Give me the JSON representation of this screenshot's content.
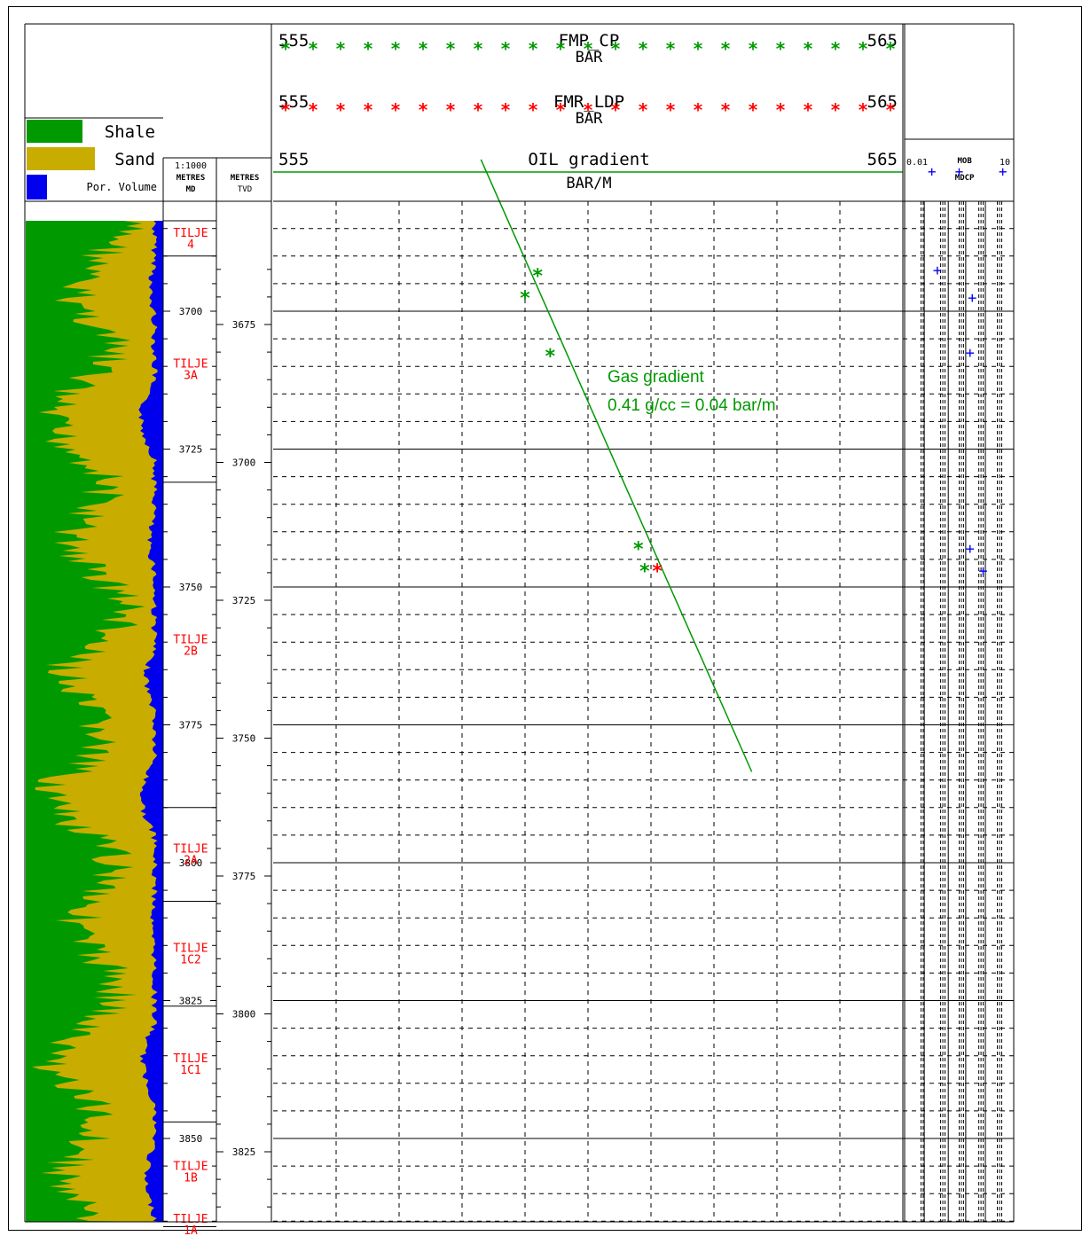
{
  "lithology_legend": {
    "shale": {
      "label": "Shale",
      "color": "#009900"
    },
    "sand": {
      "label": "Sand",
      "color": "#c8ad00"
    },
    "porosity": {
      "label": "Por. Volume",
      "color": "#0000ee"
    }
  },
  "depth_tracks": {
    "scale": "1:1000",
    "md_unit": "METRES",
    "md_label": "MD",
    "tvd_unit": "METRES",
    "tvd_label": "TVD"
  },
  "zones": [
    {
      "name": "TILJE",
      "code": "4",
      "top_md": 3672,
      "base_md": 3690
    },
    {
      "name": "TILJE",
      "code": "3A",
      "top_md": 3690,
      "base_md": 3731
    },
    {
      "name": "TILJE",
      "code": "2B",
      "top_md": 3731,
      "base_md": 3790
    },
    {
      "name": "TILJE",
      "code": "2A",
      "top_md": 3790,
      "base_md": 3807
    },
    {
      "name": "TILJE",
      "code": "1C2",
      "top_md": 3807,
      "base_md": 3826
    },
    {
      "name": "TILJE",
      "code": "1C1",
      "top_md": 3826,
      "base_md": 3847
    },
    {
      "name": "TILJE",
      "code": "1B",
      "top_md": 3847,
      "base_md": 3866
    },
    {
      "name": "TILJE",
      "code": "1A",
      "top_md": 3866,
      "base_md": 3880
    }
  ],
  "chart_data": {
    "type": "scatter",
    "x_range": [
      555,
      565
    ],
    "md_range": [
      3672.5,
      3876.5
    ],
    "tvd_range": [
      3661,
      3835
    ],
    "md_ticks": [
      3700,
      3725,
      3750,
      3775,
      3800,
      3825,
      3850
    ],
    "tvd_ticks": [
      3675,
      3700,
      3725,
      3750,
      3775,
      3800,
      3825
    ],
    "grid": true,
    "headers": [
      {
        "name": "FMP_CP",
        "unit": "BAR",
        "min": "555",
        "max": "565",
        "color": "#009900"
      },
      {
        "name": "FMR_LDP",
        "unit": "BAR",
        "min": "555",
        "max": "565",
        "color": "#ff0000"
      },
      {
        "name": "OIL gradient",
        "unit": "BAR/M",
        "min": "555",
        "max": "565",
        "color": "#009900"
      }
    ],
    "series": [
      {
        "name": "FMP_CP",
        "color": "#009900",
        "points": [
          {
            "x": 559.2,
            "md": 3693.5
          },
          {
            "x": 559.0,
            "md": 3697.5
          },
          {
            "x": 559.4,
            "md": 3708.0
          },
          {
            "x": 560.8,
            "md": 3743.0
          },
          {
            "x": 560.9,
            "md": 3747.0
          }
        ]
      },
      {
        "name": "FMR_LDP",
        "color": "#ff0000",
        "points": [
          {
            "x": 561.1,
            "md": 3747.0
          }
        ]
      }
    ],
    "gradient_line": {
      "x1": 558.3,
      "md1": 3672.5,
      "x2": 562.6,
      "md2": 3783.5,
      "color": "#009900"
    },
    "annotation": {
      "line1": "Gas gradient",
      "line2": "0.41 g/cc = 0.04 bar/m",
      "color": "#009900"
    },
    "mob_track": {
      "label": "MOB",
      "label2": "MDCP",
      "min": "0.01",
      "max": "10",
      "color": "#0000ee",
      "points": [
        {
          "md": 3692.5,
          "pos": 0.3
        },
        {
          "md": 3697.5,
          "pos": 0.62
        },
        {
          "md": 3707.5,
          "pos": 0.6
        },
        {
          "md": 3743.0,
          "pos": 0.6
        },
        {
          "md": 3747.0,
          "pos": 0.72
        }
      ]
    }
  }
}
